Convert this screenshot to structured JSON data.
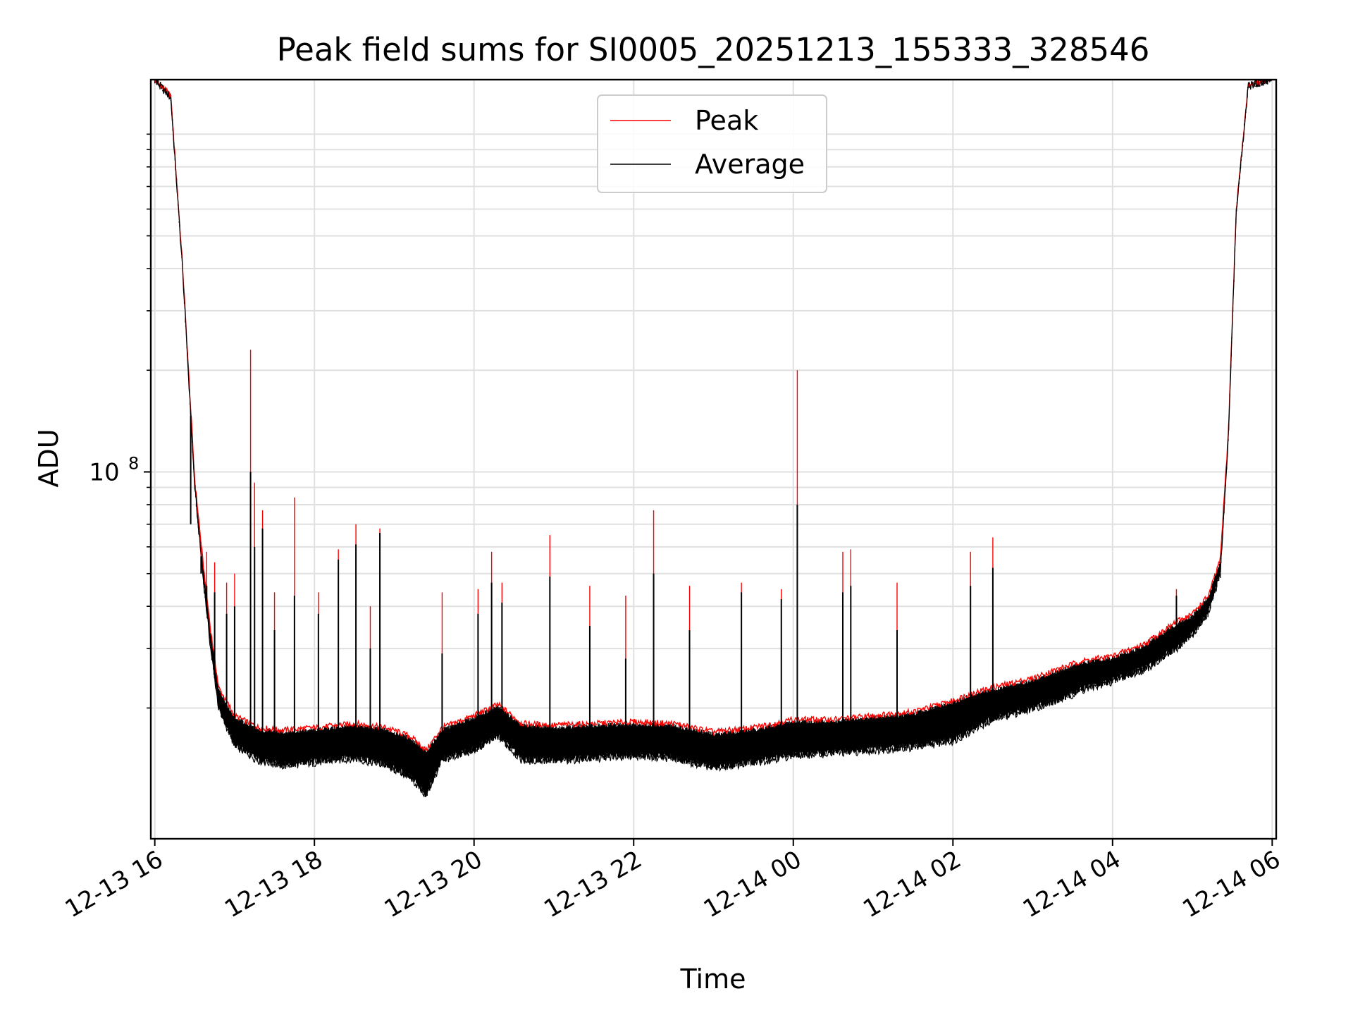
{
  "chart_data": {
    "type": "line",
    "title": "Peak field sums for SI0005_20251213_155333_328546",
    "xlabel": "Time",
    "ylabel": "ADU",
    "yscale": "log",
    "ylim": [
      8200000.0,
      1450000000.0
    ],
    "xlim_hours": [
      15.95,
      30.05
    ],
    "grid": true,
    "legend_position": "top-center",
    "x_ticks": [
      {
        "hour": 16,
        "label": "12-13 16"
      },
      {
        "hour": 18,
        "label": "12-13 18"
      },
      {
        "hour": 20,
        "label": "12-13 20"
      },
      {
        "hour": 22,
        "label": "12-13 22"
      },
      {
        "hour": 24,
        "label": "12-14 00"
      },
      {
        "hour": 26,
        "label": "12-14 02"
      },
      {
        "hour": 28,
        "label": "12-14 04"
      },
      {
        "hour": 30,
        "label": "12-14 06"
      }
    ],
    "y_ticks": [
      {
        "value": 100000000,
        "base": "10",
        "exponent": "8"
      }
    ],
    "y_minor_ticks": [
      20000000.0,
      30000000.0,
      40000000.0,
      50000000.0,
      60000000.0,
      70000000.0,
      80000000.0,
      90000000.0,
      200000000.0,
      300000000.0,
      400000000.0,
      500000000.0,
      600000000.0,
      700000000.0,
      800000000.0,
      900000000.0,
      1000000000.0
    ],
    "series": [
      {
        "name": "Peak",
        "color": "#ff0000"
      },
      {
        "name": "Average",
        "color": "#000000"
      }
    ],
    "baseline": {
      "hours": [
        16.0,
        16.2,
        16.35,
        16.5,
        16.6,
        16.7,
        16.8,
        17.0,
        17.3,
        17.6,
        18.0,
        18.5,
        18.9,
        19.2,
        19.4,
        19.6,
        20.0,
        20.3,
        20.6,
        21.0,
        21.5,
        22.0,
        22.5,
        23.0,
        23.5,
        24.0,
        24.5,
        25.0,
        25.5,
        26.0,
        26.2,
        26.5,
        27.0,
        27.3,
        27.6,
        28.0,
        28.4,
        28.8,
        29.0,
        29.2,
        29.35,
        29.45,
        29.55,
        29.7,
        30.0
      ],
      "peak": [
        1450000000,
        1300000000,
        400000000,
        95000000,
        55000000,
        34000000,
        23000000,
        19000000,
        17500000,
        17200000,
        17500000,
        18000000,
        17500000,
        16500000,
        15000000,
        17500000,
        19000000,
        20500000,
        18000000,
        17800000,
        18000000,
        18200000,
        18000000,
        17000000,
        17500000,
        18500000,
        18500000,
        19000000,
        19500000,
        21000000,
        22000000,
        23000000,
        24500000,
        26000000,
        27500000,
        28500000,
        31000000,
        36000000,
        38000000,
        43000000,
        55000000,
        130000000,
        600000000,
        1400000000,
        1450000000
      ],
      "avg": [
        1450000000,
        1280000000,
        390000000,
        90000000,
        50000000,
        30000000,
        20000000,
        15500000,
        14000000,
        13500000,
        13800000,
        14200000,
        13500000,
        12500000,
        11000000,
        14000000,
        15000000,
        16500000,
        14000000,
        14000000,
        14200000,
        14500000,
        14200000,
        13300000,
        13800000,
        14500000,
        14700000,
        15000000,
        15300000,
        16000000,
        17000000,
        18500000,
        20000000,
        21000000,
        22500000,
        24000000,
        26000000,
        30000000,
        33000000,
        38000000,
        50000000,
        125000000,
        590000000,
        1390000000,
        1450000000
      ]
    },
    "spikes": [
      {
        "hour": 16.45,
        "peak": 84000000,
        "avg": 70000000
      },
      {
        "hour": 16.58,
        "peak": 62000000,
        "avg": 50000000
      },
      {
        "hour": 16.65,
        "peak": 58000000,
        "avg": 46000000
      },
      {
        "hour": 16.75,
        "peak": 54000000,
        "avg": 44000000
      },
      {
        "hour": 16.9,
        "peak": 47000000,
        "avg": 38000000
      },
      {
        "hour": 17.0,
        "peak": 50000000,
        "avg": 40000000
      },
      {
        "hour": 17.2,
        "peak": 230000000,
        "avg": 100000000
      },
      {
        "hour": 17.25,
        "peak": 93000000,
        "avg": 60000000
      },
      {
        "hour": 17.35,
        "peak": 77000000,
        "avg": 68000000
      },
      {
        "hour": 17.5,
        "peak": 44000000,
        "avg": 34000000
      },
      {
        "hour": 17.75,
        "peak": 84000000,
        "avg": 43000000
      },
      {
        "hour": 18.05,
        "peak": 44000000,
        "avg": 38000000
      },
      {
        "hour": 18.3,
        "peak": 59000000,
        "avg": 55000000
      },
      {
        "hour": 18.52,
        "peak": 70000000,
        "avg": 61000000
      },
      {
        "hour": 18.7,
        "peak": 40000000,
        "avg": 30000000
      },
      {
        "hour": 18.82,
        "peak": 68000000,
        "avg": 66000000
      },
      {
        "hour": 19.6,
        "peak": 44000000,
        "avg": 29000000
      },
      {
        "hour": 20.05,
        "peak": 45000000,
        "avg": 38000000
      },
      {
        "hour": 20.22,
        "peak": 58000000,
        "avg": 47000000
      },
      {
        "hour": 20.35,
        "peak": 47000000,
        "avg": 41000000
      },
      {
        "hour": 20.95,
        "peak": 65000000,
        "avg": 49000000
      },
      {
        "hour": 21.45,
        "peak": 46000000,
        "avg": 35000000
      },
      {
        "hour": 21.9,
        "peak": 43000000,
        "avg": 28000000
      },
      {
        "hour": 22.25,
        "peak": 77000000,
        "avg": 50000000
      },
      {
        "hour": 22.7,
        "peak": 46000000,
        "avg": 34000000
      },
      {
        "hour": 23.35,
        "peak": 47000000,
        "avg": 44000000
      },
      {
        "hour": 23.85,
        "peak": 45000000,
        "avg": 42000000
      },
      {
        "hour": 24.05,
        "peak": 200000000,
        "avg": 80000000
      },
      {
        "hour": 24.62,
        "peak": 58000000,
        "avg": 44000000
      },
      {
        "hour": 24.72,
        "peak": 59000000,
        "avg": 46000000
      },
      {
        "hour": 25.3,
        "peak": 47000000,
        "avg": 34000000
      },
      {
        "hour": 26.22,
        "peak": 58000000,
        "avg": 46000000
      },
      {
        "hour": 26.5,
        "peak": 64000000,
        "avg": 52000000
      },
      {
        "hour": 28.8,
        "peak": 45000000,
        "avg": 43000000
      }
    ]
  }
}
